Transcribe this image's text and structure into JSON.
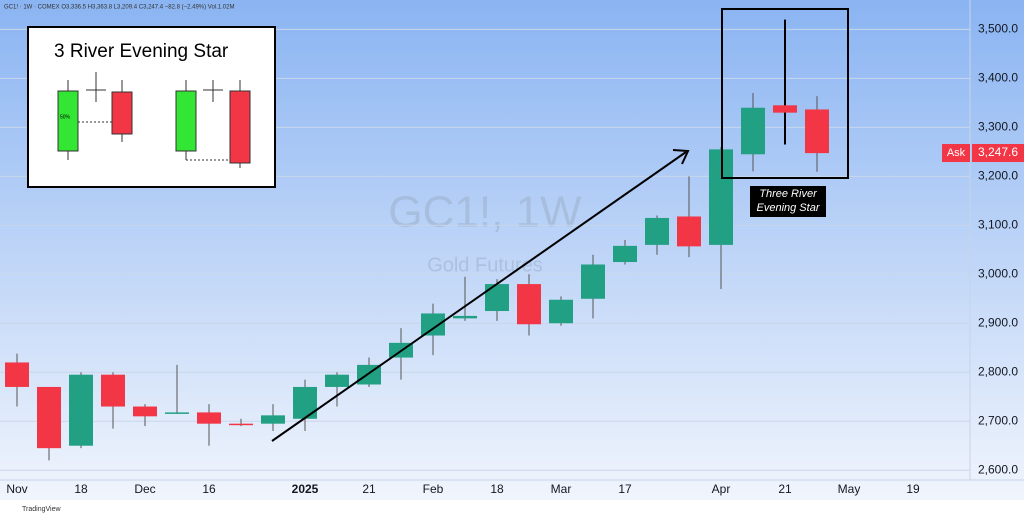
{
  "header": "GC1! · 1W · COMEX  O3,336.5  H3,363.8  L3,209.4  C3,247.4  −82.8 (−2.49%)  Vol.1.02M",
  "footer": "TradingView",
  "inset": {
    "title": "3 River Evening Star",
    "midpoint_label": "50%"
  },
  "chart_data": {
    "type": "candlestick",
    "watermark": "GC1!, 1W",
    "watermark_subtitle": "Gold Futures",
    "annotation": [
      "Three River",
      "Evening Star"
    ],
    "price_tag": {
      "label": "Ask",
      "value": 3247.6,
      "value_label": "3,247.6"
    },
    "categories": [
      "Nov",
      null,
      "18",
      null,
      "Dec",
      null,
      "16",
      null,
      null,
      "2025",
      null,
      "21",
      null,
      "Feb",
      null,
      "18",
      null,
      "Mar",
      null,
      "17",
      null,
      null,
      "Apr",
      null,
      "21",
      null,
      "May",
      null,
      "19"
    ],
    "open": [
      2820,
      2770,
      2650,
      2795,
      2730,
      2717,
      2718,
      2695,
      2695,
      2705,
      2770,
      2775,
      2830,
      2875,
      2910,
      2925,
      2980,
      2900,
      2950,
      3025,
      3060,
      3118,
      3060,
      3245,
      3345,
      3336.5,
      null,
      null,
      null
    ],
    "high": [
      2838,
      2770,
      2800,
      2800,
      2735,
      2815,
      2735,
      2705,
      2735,
      2785,
      2800,
      2830,
      2890,
      2940,
      2995,
      2990,
      3000,
      2955,
      3040,
      3070,
      3120,
      3200,
      3260,
      3370,
      3520,
      3363.8,
      null,
      null,
      null
    ],
    "low": [
      2730,
      2620,
      2645,
      2685,
      2690,
      2715,
      2650,
      2690,
      2680,
      2680,
      2730,
      2770,
      2785,
      2835,
      2905,
      2905,
      2875,
      2895,
      2910,
      3020,
      3040,
      3035,
      2970,
      3210,
      3265,
      3209.4,
      null,
      null,
      null
    ],
    "close": [
      2770,
      2645,
      2795,
      2730,
      2710,
      2718,
      2695,
      2692,
      2712,
      2770,
      2795,
      2815,
      2860,
      2920,
      2915,
      2980,
      2898,
      2948,
      3020,
      3058,
      3115,
      3057,
      3255,
      3340,
      3330,
      3247.4,
      null,
      null,
      null
    ],
    "up_color": "#22a084",
    "down_color": "#f23645",
    "ylim": [
      2580,
      3560
    ],
    "yticks": [
      {
        "value": 2600,
        "label": "2,600.0"
      },
      {
        "value": 2700,
        "label": "2,700.0"
      },
      {
        "value": 2800,
        "label": "2,800.0"
      },
      {
        "value": 2900,
        "label": "2,900.0"
      },
      {
        "value": 3000,
        "label": "3,000.0"
      },
      {
        "value": 3100,
        "label": "3,100.0"
      },
      {
        "value": 3200,
        "label": "3,200.0"
      },
      {
        "value": 3300,
        "label": "3,300.0"
      },
      {
        "value": 3400,
        "label": "3,400.0"
      },
      {
        "value": 3500,
        "label": "3,500.0"
      }
    ],
    "grid": true
  }
}
